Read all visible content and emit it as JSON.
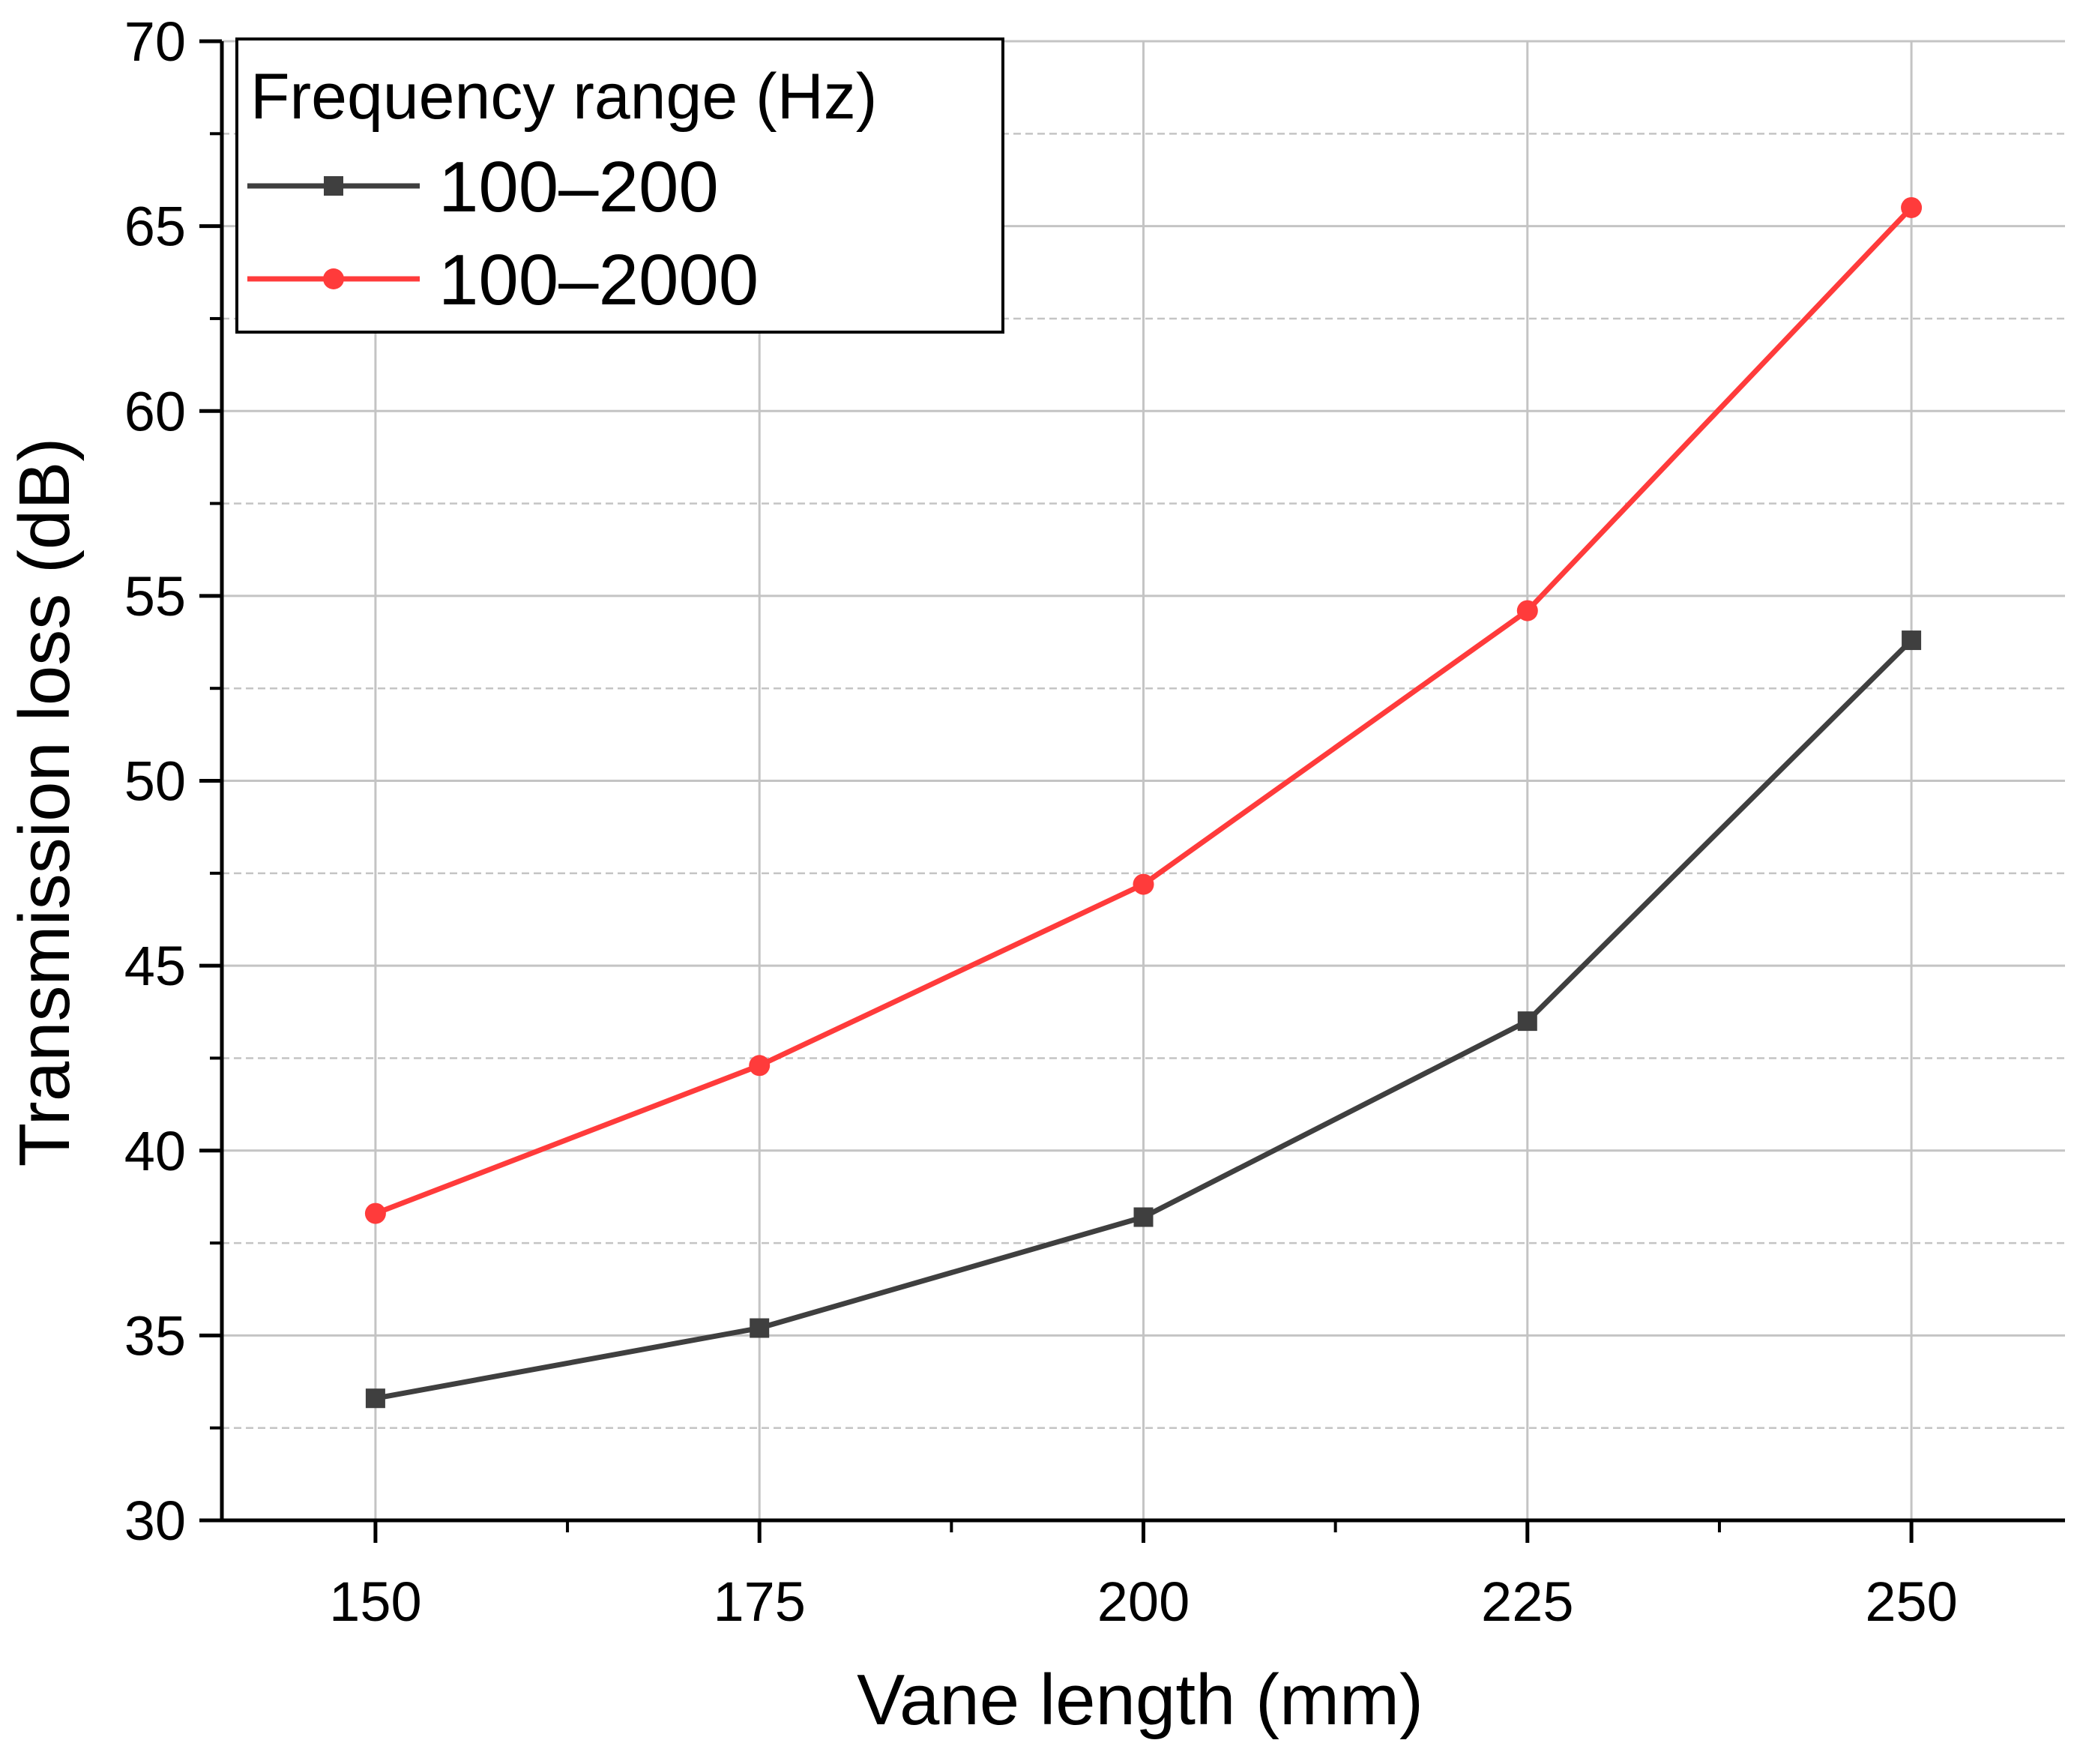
{
  "chart_data": {
    "type": "line",
    "title": "",
    "xlabel": "Vane length (mm)",
    "ylabel": "Transmission loss (dB)",
    "x": [
      150,
      175,
      200,
      225,
      250
    ],
    "xlim": [
      140,
      260
    ],
    "ylim": [
      30,
      70
    ],
    "xticks": [
      "150",
      "175",
      "200",
      "225",
      "250"
    ],
    "yticks": [
      "30",
      "35",
      "40",
      "45",
      "50",
      "55",
      "60",
      "65",
      "70"
    ],
    "grid": true,
    "legend_title": "Frequency range (Hz)",
    "legend_position": "top-left",
    "series": [
      {
        "name": "100–200",
        "color": "#3f3f3f",
        "marker": "square",
        "values": [
          33.3,
          35.2,
          38.2,
          43.5,
          53.8
        ]
      },
      {
        "name": "100–2000",
        "color": "#ff3b3b",
        "marker": "circle",
        "values": [
          38.3,
          42.3,
          47.2,
          54.6,
          65.5
        ]
      }
    ]
  }
}
